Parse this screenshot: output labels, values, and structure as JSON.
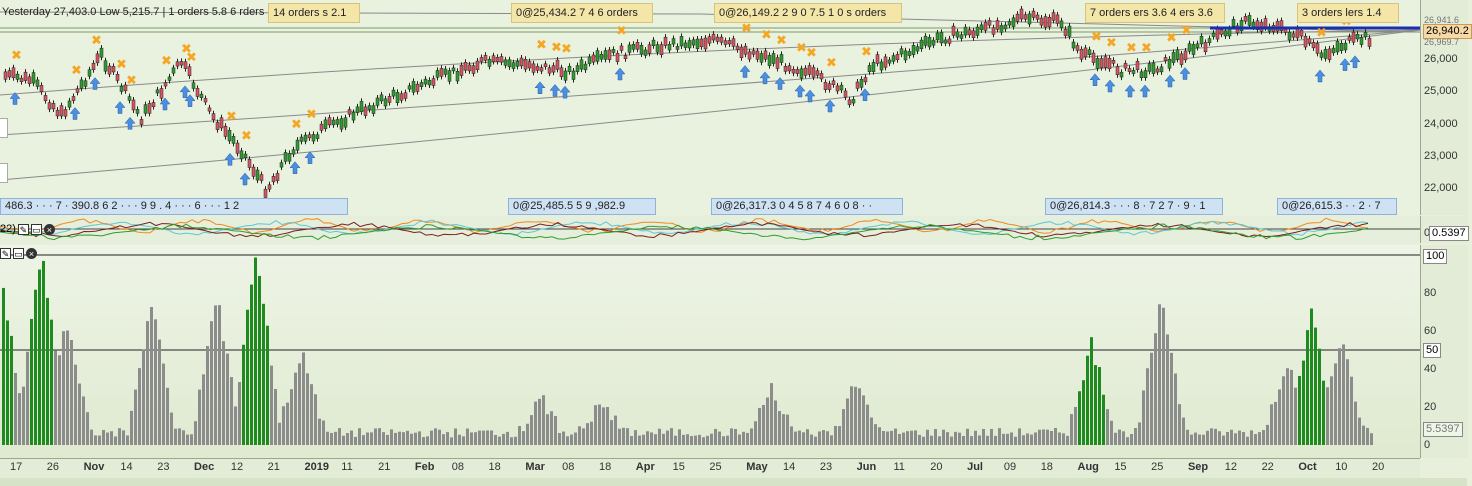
{
  "price_pane": {
    "legend_text": "Yesterday 27,403.0 Low 5,215.7 | 1 orders 5.8 6 rders",
    "annotations_top": [
      {
        "text": "14 orders s 2.1"
      },
      {
        "text": "0@25,434.2 7 4  6 orders"
      },
      {
        "text": "0@26,149.2 2 9 0  7.5 1 0  s orders"
      },
      {
        "text": "7 orders ers 3.6 4  ers 3.6"
      },
      {
        "text": "3 orders lers 1.4"
      }
    ],
    "annotations_bottom": [
      {
        "text": "486.3 · · · 7 · 390.8 6 2 · · · 9 9 . 4 · · · 6 · · · 1 2"
      },
      {
        "text": "0@25,485.5 5 9 ,982.9"
      },
      {
        "text": "0@26,317.3 0 4 5 8  7 4 6 0  8 · ·"
      },
      {
        "text": "0@26,814.3 · · · 8 · 7 2 7 · 9 · 1"
      },
      {
        "text": "0@26,615.3 · · 2 · 7"
      }
    ],
    "yaxis_ticks": [
      "26,000",
      "25,000",
      "24,000",
      "23,000",
      "22,000"
    ],
    "last_price": "26,940.2",
    "small_top_labels": [
      "26,941.6",
      "26,969.7"
    ]
  },
  "osc_pane": {
    "label": "22) ",
    "value": "0.5397",
    "tick": "0"
  },
  "vol_pane": {
    "yaxis_ticks": [
      "100",
      "80",
      "60",
      "50",
      "40",
      "20",
      "0"
    ],
    "value": "5.5397"
  },
  "xaxis": {
    "labels": [
      {
        "t": "17",
        "b": false
      },
      {
        "t": "26",
        "b": false
      },
      {
        "t": "Nov",
        "b": true
      },
      {
        "t": "14",
        "b": false
      },
      {
        "t": "23",
        "b": false
      },
      {
        "t": "Dec",
        "b": true
      },
      {
        "t": "12",
        "b": false
      },
      {
        "t": "21",
        "b": false
      },
      {
        "t": "2019",
        "b": true
      },
      {
        "t": "11",
        "b": false
      },
      {
        "t": "21",
        "b": false
      },
      {
        "t": "Feb",
        "b": true
      },
      {
        "t": "08",
        "b": false
      },
      {
        "t": "18",
        "b": false
      },
      {
        "t": "Mar",
        "b": true
      },
      {
        "t": "08",
        "b": false
      },
      {
        "t": "18",
        "b": false
      },
      {
        "t": "Apr",
        "b": true
      },
      {
        "t": "15",
        "b": false
      },
      {
        "t": "25",
        "b": false
      },
      {
        "t": "May",
        "b": true
      },
      {
        "t": "14",
        "b": false
      },
      {
        "t": "23",
        "b": false
      },
      {
        "t": "Jun",
        "b": true
      },
      {
        "t": "11",
        "b": false
      },
      {
        "t": "20",
        "b": false
      },
      {
        "t": "Jul",
        "b": true
      },
      {
        "t": "09",
        "b": false
      },
      {
        "t": "18",
        "b": false
      },
      {
        "t": "Aug",
        "b": true
      },
      {
        "t": "15",
        "b": false
      },
      {
        "t": "25",
        "b": false
      },
      {
        "t": "Sep",
        "b": true
      },
      {
        "t": "12",
        "b": false
      },
      {
        "t": "22",
        "b": false
      },
      {
        "t": "Oct",
        "b": true
      },
      {
        "t": "10",
        "b": false
      },
      {
        "t": "20",
        "b": false
      }
    ]
  },
  "colors": {
    "bull": "#2e9e2e",
    "bear": "#d9555f",
    "vol_green": "#1f8a1f",
    "vol_grey": "#8c8c8c",
    "order_marker": "#f5a623",
    "arrow_marker": "#4b8fe0",
    "last_price_line": "#1a2fb0"
  },
  "icons": {
    "tool": "wrench-icon",
    "window": "window-icon",
    "close": "close-icon"
  }
}
